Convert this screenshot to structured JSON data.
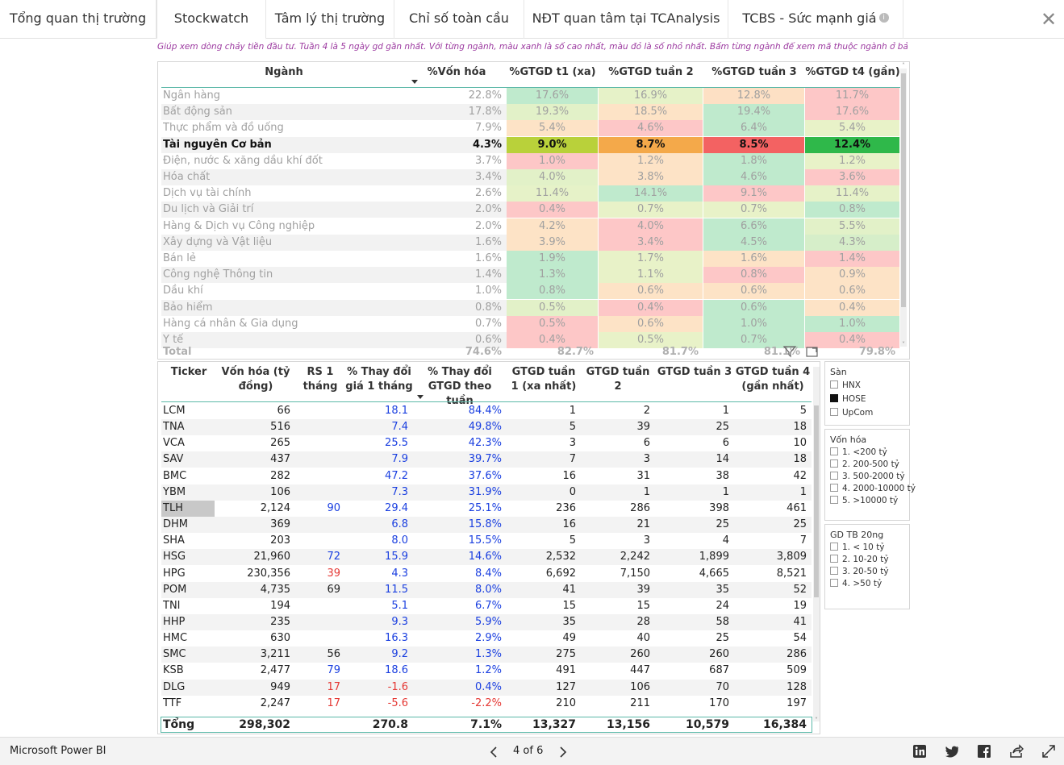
{
  "tabs": [
    {
      "label": "Tổng quan thị trường"
    },
    {
      "label": "Stockwatch"
    },
    {
      "label": "Tâm lý thị trường"
    },
    {
      "label": "Chỉ số toàn cầu"
    },
    {
      "label": "NĐT quan tâm tại TCAnalysis"
    },
    {
      "label": "TCBS - Sức mạnh giá"
    }
  ],
  "active_tab": "Stockwatch",
  "subtitle": "Giúp xem dòng chảy tiền đầu tư. Tuần 4 là 5 ngày gd gần nhất. Với từng ngành, màu xanh là số cao nhất, màu đỏ là số nhỏ nhất. Bấm từng ngành để xem mã thuộc ngành ở bảng dưới.",
  "industry_table": {
    "headers": [
      "Ngành",
      "%Vốn hóa",
      "%GTGD t1 (xa)",
      "%GTGD tuần 2",
      "%GTGD tuần 3",
      "%GTGD t4 (gần)"
    ],
    "rows": [
      {
        "name": "Ngân hàng",
        "cap": "22.8%",
        "v": [
          "17.6%",
          "16.9%",
          "12.8%",
          "11.7%"
        ],
        "c": [
          "#bfeacd",
          "#e6f2c8",
          "#fde0c4",
          "#fdc7c7"
        ]
      },
      {
        "name": "Bất động sản",
        "cap": "17.8%",
        "v": [
          "19.3%",
          "18.5%",
          "19.4%",
          "17.6%"
        ],
        "c": [
          "#e2f1c8",
          "#fde3c6",
          "#bfeacd",
          "#fdc7c7"
        ]
      },
      {
        "name": "Thực phẩm và đồ uống",
        "cap": "7.9%",
        "v": [
          "5.4%",
          "4.6%",
          "6.4%",
          "5.4%"
        ],
        "c": [
          "#fde3c6",
          "#fdc7c7",
          "#bfeacd",
          "#e8f2c8"
        ]
      },
      {
        "name": "Tài nguyên Cơ bản",
        "cap": "4.3%",
        "v": [
          "9.0%",
          "8.7%",
          "8.5%",
          "12.4%"
        ],
        "c": [
          "#b9d13a",
          "#f4a94a",
          "#f36262",
          "#2fb84a"
        ],
        "selected": true
      },
      {
        "name": "Điện, nước & xăng dầu khí đốt",
        "cap": "3.7%",
        "v": [
          "1.0%",
          "1.2%",
          "1.8%",
          "1.2%"
        ],
        "c": [
          "#fdc7c7",
          "#fde3c6",
          "#bfeacd",
          "#e8f2c8"
        ]
      },
      {
        "name": "Hóa chất",
        "cap": "3.4%",
        "v": [
          "4.0%",
          "3.8%",
          "4.6%",
          "3.6%"
        ],
        "c": [
          "#e2f1c8",
          "#fde3c6",
          "#bfeacd",
          "#fdc7c7"
        ]
      },
      {
        "name": "Dịch vụ tài chính",
        "cap": "2.6%",
        "v": [
          "11.4%",
          "14.1%",
          "9.1%",
          "11.4%"
        ],
        "c": [
          "#e6f2c8",
          "#bfeacd",
          "#fdc7c7",
          "#e6f2c8"
        ]
      },
      {
        "name": "Du lịch và Giải trí",
        "cap": "2.0%",
        "v": [
          "0.4%",
          "0.7%",
          "0.7%",
          "0.8%"
        ],
        "c": [
          "#fdc7c7",
          "#e8f2c8",
          "#e8f2c8",
          "#bfeacd"
        ]
      },
      {
        "name": "Hàng & Dịch vụ Công nghiệp",
        "cap": "2.0%",
        "v": [
          "4.2%",
          "4.0%",
          "6.6%",
          "5.5%"
        ],
        "c": [
          "#fde3c6",
          "#fdc7c7",
          "#bfeacd",
          "#e2f1c8"
        ]
      },
      {
        "name": "Xây dựng và Vật liệu",
        "cap": "1.6%",
        "v": [
          "3.9%",
          "3.4%",
          "4.5%",
          "4.3%"
        ],
        "c": [
          "#fde3c6",
          "#fdc7c7",
          "#bfeacd",
          "#d6eec9"
        ]
      },
      {
        "name": "Bán lẻ",
        "cap": "1.6%",
        "v": [
          "1.9%",
          "1.7%",
          "1.6%",
          "1.4%"
        ],
        "c": [
          "#bfeacd",
          "#e8f2c8",
          "#fde3c6",
          "#fdc7c7"
        ]
      },
      {
        "name": "Công nghệ Thông tin",
        "cap": "1.4%",
        "v": [
          "1.3%",
          "1.1%",
          "0.8%",
          "0.9%"
        ],
        "c": [
          "#bfeacd",
          "#e8f2c8",
          "#fdc7c7",
          "#fde3c6"
        ]
      },
      {
        "name": "Dầu khí",
        "cap": "1.0%",
        "v": [
          "0.8%",
          "0.6%",
          "0.6%",
          "0.6%"
        ],
        "c": [
          "#bfeacd",
          "#fde3c6",
          "#fde3c6",
          "#fde3c6"
        ]
      },
      {
        "name": "Bảo hiểm",
        "cap": "0.8%",
        "v": [
          "0.5%",
          "0.4%",
          "0.6%",
          "0.4%"
        ],
        "c": [
          "#e2f1c8",
          "#fdc7c7",
          "#bfeacd",
          "#fde3c6"
        ]
      },
      {
        "name": "Hàng cá nhân & Gia dụng",
        "cap": "0.7%",
        "v": [
          "0.5%",
          "0.6%",
          "1.0%",
          "1.0%"
        ],
        "c": [
          "#fdc7c7",
          "#fde3c6",
          "#bfeacd",
          "#bfeacd"
        ]
      },
      {
        "name": "Y tế",
        "cap": "0.6%",
        "v": [
          "0.4%",
          "0.5%",
          "0.7%",
          "0.4%"
        ],
        "c": [
          "#fdc7c7",
          "#e8f2c8",
          "#bfeacd",
          "#fdc7c7"
        ]
      }
    ],
    "total": {
      "label": "Total",
      "cap": "74.6%",
      "v": [
        "82.7%",
        "81.7%",
        "81.1%",
        "79.8%"
      ]
    }
  },
  "stock_table": {
    "headers": [
      "Ticker",
      "Vốn hóa (tỷ đồng)",
      "RS 1 tháng",
      "% Thay đổi giá 1 tháng",
      "% Thay đổi GTGD theo tuần",
      "GTGD tuần 1 (xa nhất)",
      "GTGD tuần 2",
      "GTGD tuần 3",
      "GTGD tuần 4 (gần nhất)"
    ],
    "rows": [
      {
        "t": "LCM",
        "cap": "66",
        "rs": "",
        "rsc": "",
        "p": "18.1",
        "pc": "blue",
        "g": "84.4%",
        "gc": "blue",
        "w": [
          "1",
          "2",
          "1",
          "5"
        ]
      },
      {
        "t": "TNA",
        "cap": "516",
        "rs": "",
        "rsc": "",
        "p": "7.4",
        "pc": "blue",
        "g": "49.8%",
        "gc": "blue",
        "w": [
          "5",
          "39",
          "25",
          "18"
        ]
      },
      {
        "t": "VCA",
        "cap": "265",
        "rs": "",
        "rsc": "",
        "p": "25.5",
        "pc": "blue",
        "g": "42.3%",
        "gc": "blue",
        "w": [
          "3",
          "6",
          "6",
          "10"
        ]
      },
      {
        "t": "SAV",
        "cap": "437",
        "rs": "",
        "rsc": "",
        "p": "7.9",
        "pc": "blue",
        "g": "39.7%",
        "gc": "blue",
        "w": [
          "7",
          "3",
          "14",
          "18"
        ]
      },
      {
        "t": "BMC",
        "cap": "282",
        "rs": "",
        "rsc": "",
        "p": "47.2",
        "pc": "blue",
        "g": "37.6%",
        "gc": "blue",
        "w": [
          "16",
          "31",
          "38",
          "42"
        ]
      },
      {
        "t": "YBM",
        "cap": "106",
        "rs": "",
        "rsc": "",
        "p": "7.3",
        "pc": "blue",
        "g": "31.9%",
        "gc": "blue",
        "w": [
          "0",
          "1",
          "1",
          "1"
        ]
      },
      {
        "t": "TLH",
        "cap": "2,124",
        "rs": "90",
        "rsc": "blue",
        "p": "29.4",
        "pc": "blue",
        "g": "25.1%",
        "gc": "blue",
        "w": [
          "236",
          "286",
          "398",
          "461"
        ],
        "tick_hl": true
      },
      {
        "t": "DHM",
        "cap": "369",
        "rs": "",
        "rsc": "",
        "p": "6.8",
        "pc": "blue",
        "g": "15.8%",
        "gc": "blue",
        "w": [
          "16",
          "21",
          "25",
          "25"
        ]
      },
      {
        "t": "SHA",
        "cap": "203",
        "rs": "",
        "rsc": "",
        "p": "8.0",
        "pc": "blue",
        "g": "15.5%",
        "gc": "blue",
        "w": [
          "5",
          "3",
          "4",
          "7"
        ]
      },
      {
        "t": "HSG",
        "cap": "21,960",
        "rs": "72",
        "rsc": "blue",
        "p": "15.9",
        "pc": "blue",
        "g": "14.6%",
        "gc": "blue",
        "w": [
          "2,532",
          "2,242",
          "1,899",
          "3,809"
        ]
      },
      {
        "t": "HPG",
        "cap": "230,356",
        "rs": "39",
        "rsc": "red",
        "p": "4.3",
        "pc": "blue",
        "g": "8.4%",
        "gc": "blue",
        "w": [
          "6,692",
          "7,150",
          "4,665",
          "8,521"
        ]
      },
      {
        "t": "POM",
        "cap": "4,735",
        "rs": "69",
        "rsc": "",
        "p": "11.5",
        "pc": "blue",
        "g": "8.0%",
        "gc": "blue",
        "w": [
          "41",
          "39",
          "35",
          "52"
        ]
      },
      {
        "t": "TNI",
        "cap": "194",
        "rs": "",
        "rsc": "",
        "p": "5.1",
        "pc": "blue",
        "g": "6.7%",
        "gc": "blue",
        "w": [
          "15",
          "15",
          "24",
          "19"
        ]
      },
      {
        "t": "HHP",
        "cap": "235",
        "rs": "",
        "rsc": "",
        "p": "9.3",
        "pc": "blue",
        "g": "5.9%",
        "gc": "blue",
        "w": [
          "35",
          "28",
          "58",
          "41"
        ]
      },
      {
        "t": "HMC",
        "cap": "630",
        "rs": "",
        "rsc": "",
        "p": "16.3",
        "pc": "blue",
        "g": "2.9%",
        "gc": "blue",
        "w": [
          "49",
          "40",
          "25",
          "54"
        ]
      },
      {
        "t": "SMC",
        "cap": "3,211",
        "rs": "56",
        "rsc": "",
        "p": "9.2",
        "pc": "blue",
        "g": "1.3%",
        "gc": "blue",
        "w": [
          "275",
          "260",
          "260",
          "286"
        ]
      },
      {
        "t": "KSB",
        "cap": "2,477",
        "rs": "79",
        "rsc": "blue",
        "p": "18.6",
        "pc": "blue",
        "g": "1.2%",
        "gc": "blue",
        "w": [
          "491",
          "447",
          "687",
          "509"
        ]
      },
      {
        "t": "DLG",
        "cap": "949",
        "rs": "17",
        "rsc": "red",
        "p": "-1.6",
        "pc": "red",
        "g": "0.4%",
        "gc": "blue",
        "w": [
          "127",
          "106",
          "70",
          "128"
        ]
      },
      {
        "t": "TTF",
        "cap": "2,247",
        "rs": "17",
        "rsc": "red",
        "p": "-5.6",
        "pc": "red",
        "g": "-2.2%",
        "gc": "red",
        "w": [
          "210",
          "211",
          "170",
          "197"
        ]
      }
    ],
    "total": {
      "label": "Tổng",
      "cap": "298,302",
      "rs": "",
      "p": "270.8",
      "g": "7.1%",
      "w": [
        "13,327",
        "13,156",
        "10,579",
        "16,384"
      ]
    }
  },
  "slicers": [
    {
      "title": "Sàn",
      "items": [
        {
          "label": "HNX",
          "checked": false
        },
        {
          "label": "HOSE",
          "checked": true
        },
        {
          "label": "UpCom",
          "checked": false
        }
      ]
    },
    {
      "title": "Vốn hóa",
      "items": [
        {
          "label": "1. <200 tỷ",
          "checked": false
        },
        {
          "label": "2. 200-500 tỷ",
          "checked": false
        },
        {
          "label": "3. 500-2000 tỷ",
          "checked": false
        },
        {
          "label": "4. 2000-10000 tỷ",
          "checked": false
        },
        {
          "label": "5. >10000 tỷ",
          "checked": false
        }
      ]
    },
    {
      "title": "GD TB 20ng",
      "items": [
        {
          "label": "1. < 10 tỷ",
          "checked": false
        },
        {
          "label": "2. 10-20 tỷ",
          "checked": false
        },
        {
          "label": "3. 20-50 tỷ",
          "checked": false
        },
        {
          "label": "4. >50 tỷ",
          "checked": false
        }
      ]
    }
  ],
  "footer": {
    "brand": "Microsoft Power BI",
    "page_indicator": "4 of 6",
    "icons": [
      "linkedin-icon",
      "twitter-icon",
      "facebook-icon",
      "share-icon",
      "fullscreen-icon"
    ]
  },
  "colors": {
    "accent_line": "#5bb8a8",
    "subtitle": "#9c3aa0",
    "positive_blue": "#1a3fe0",
    "negative_red": "#e53935"
  }
}
